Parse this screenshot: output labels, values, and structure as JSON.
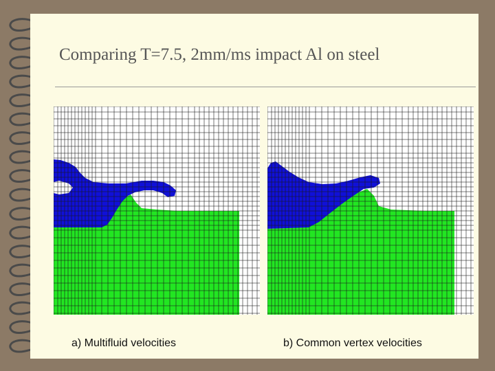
{
  "slide": {
    "title": "Comparing T=7.5, 2mm/ms impact Al on steel",
    "background_color": "#fdfbe3",
    "frame_color": "#8c7a66"
  },
  "panels": [
    {
      "caption": "a) Multifluid velocities",
      "colors": {
        "projectile": "#1010d8",
        "target": "#22e622",
        "mesh": "#1a1a1a"
      }
    },
    {
      "caption": "b) Common vertex velocities",
      "colors": {
        "projectile": "#1010d8",
        "target": "#22e622",
        "mesh": "#1a1a1a"
      }
    }
  ],
  "decor": {
    "spiral_binding": "spiral-binding-icon"
  }
}
